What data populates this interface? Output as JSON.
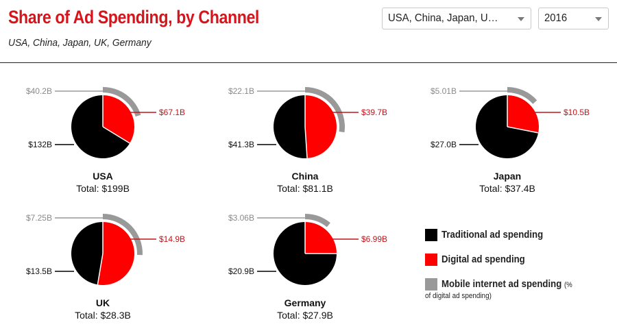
{
  "header": {
    "title": "Share of Ad Spending, by Channel",
    "subtitle": "USA, China, Japan, UK, Germany"
  },
  "filters": {
    "countries_value": "USA, China, Japan, U…",
    "year_value": "2016"
  },
  "colors": {
    "traditional": "#000000",
    "digital": "#ff0000",
    "mobile": "#999999",
    "title": "#d6141b",
    "digital_label": "#c0151b",
    "mobile_label": "#8a8a8a"
  },
  "chart_data": {
    "type": "pie",
    "description_units": "billions USD",
    "series_names": [
      "Traditional ad spending",
      "Digital ad spending",
      "Mobile internet ad spending"
    ],
    "charts": [
      {
        "country": "USA",
        "total": 199,
        "total_label": "Total: $199B",
        "traditional": 132,
        "traditional_label": "$132B",
        "digital": 67.1,
        "digital_label": "$67.1B",
        "mobile": 40.2,
        "mobile_label": "$40.2B"
      },
      {
        "country": "China",
        "total": 81.1,
        "total_label": "Total: $81.1B",
        "traditional": 41.3,
        "traditional_label": "$41.3B",
        "digital": 39.7,
        "digital_label": "$39.7B",
        "mobile": 22.1,
        "mobile_label": "$22.1B"
      },
      {
        "country": "Japan",
        "total": 37.4,
        "total_label": "Total: $37.4B",
        "traditional": 27.0,
        "traditional_label": "$27.0B",
        "digital": 10.5,
        "digital_label": "$10.5B",
        "mobile": 5.01,
        "mobile_label": "$5.01B"
      },
      {
        "country": "UK",
        "total": 28.3,
        "total_label": "Total: $28.3B",
        "traditional": 13.5,
        "traditional_label": "$13.5B",
        "digital": 14.9,
        "digital_label": "$14.9B",
        "mobile": 7.25,
        "mobile_label": "$7.25B"
      },
      {
        "country": "Germany",
        "total": 27.9,
        "total_label": "Total: $27.9B",
        "traditional": 20.9,
        "traditional_label": "$20.9B",
        "digital": 6.99,
        "digital_label": "$6.99B",
        "mobile": 3.06,
        "mobile_label": "$3.06B"
      }
    ]
  },
  "legend": {
    "traditional": "Traditional ad spending",
    "digital": "Digital ad spending",
    "mobile": "Mobile internet ad spending",
    "mobile_note_a": "(%",
    "mobile_note_b": "of digital ad spending)"
  }
}
